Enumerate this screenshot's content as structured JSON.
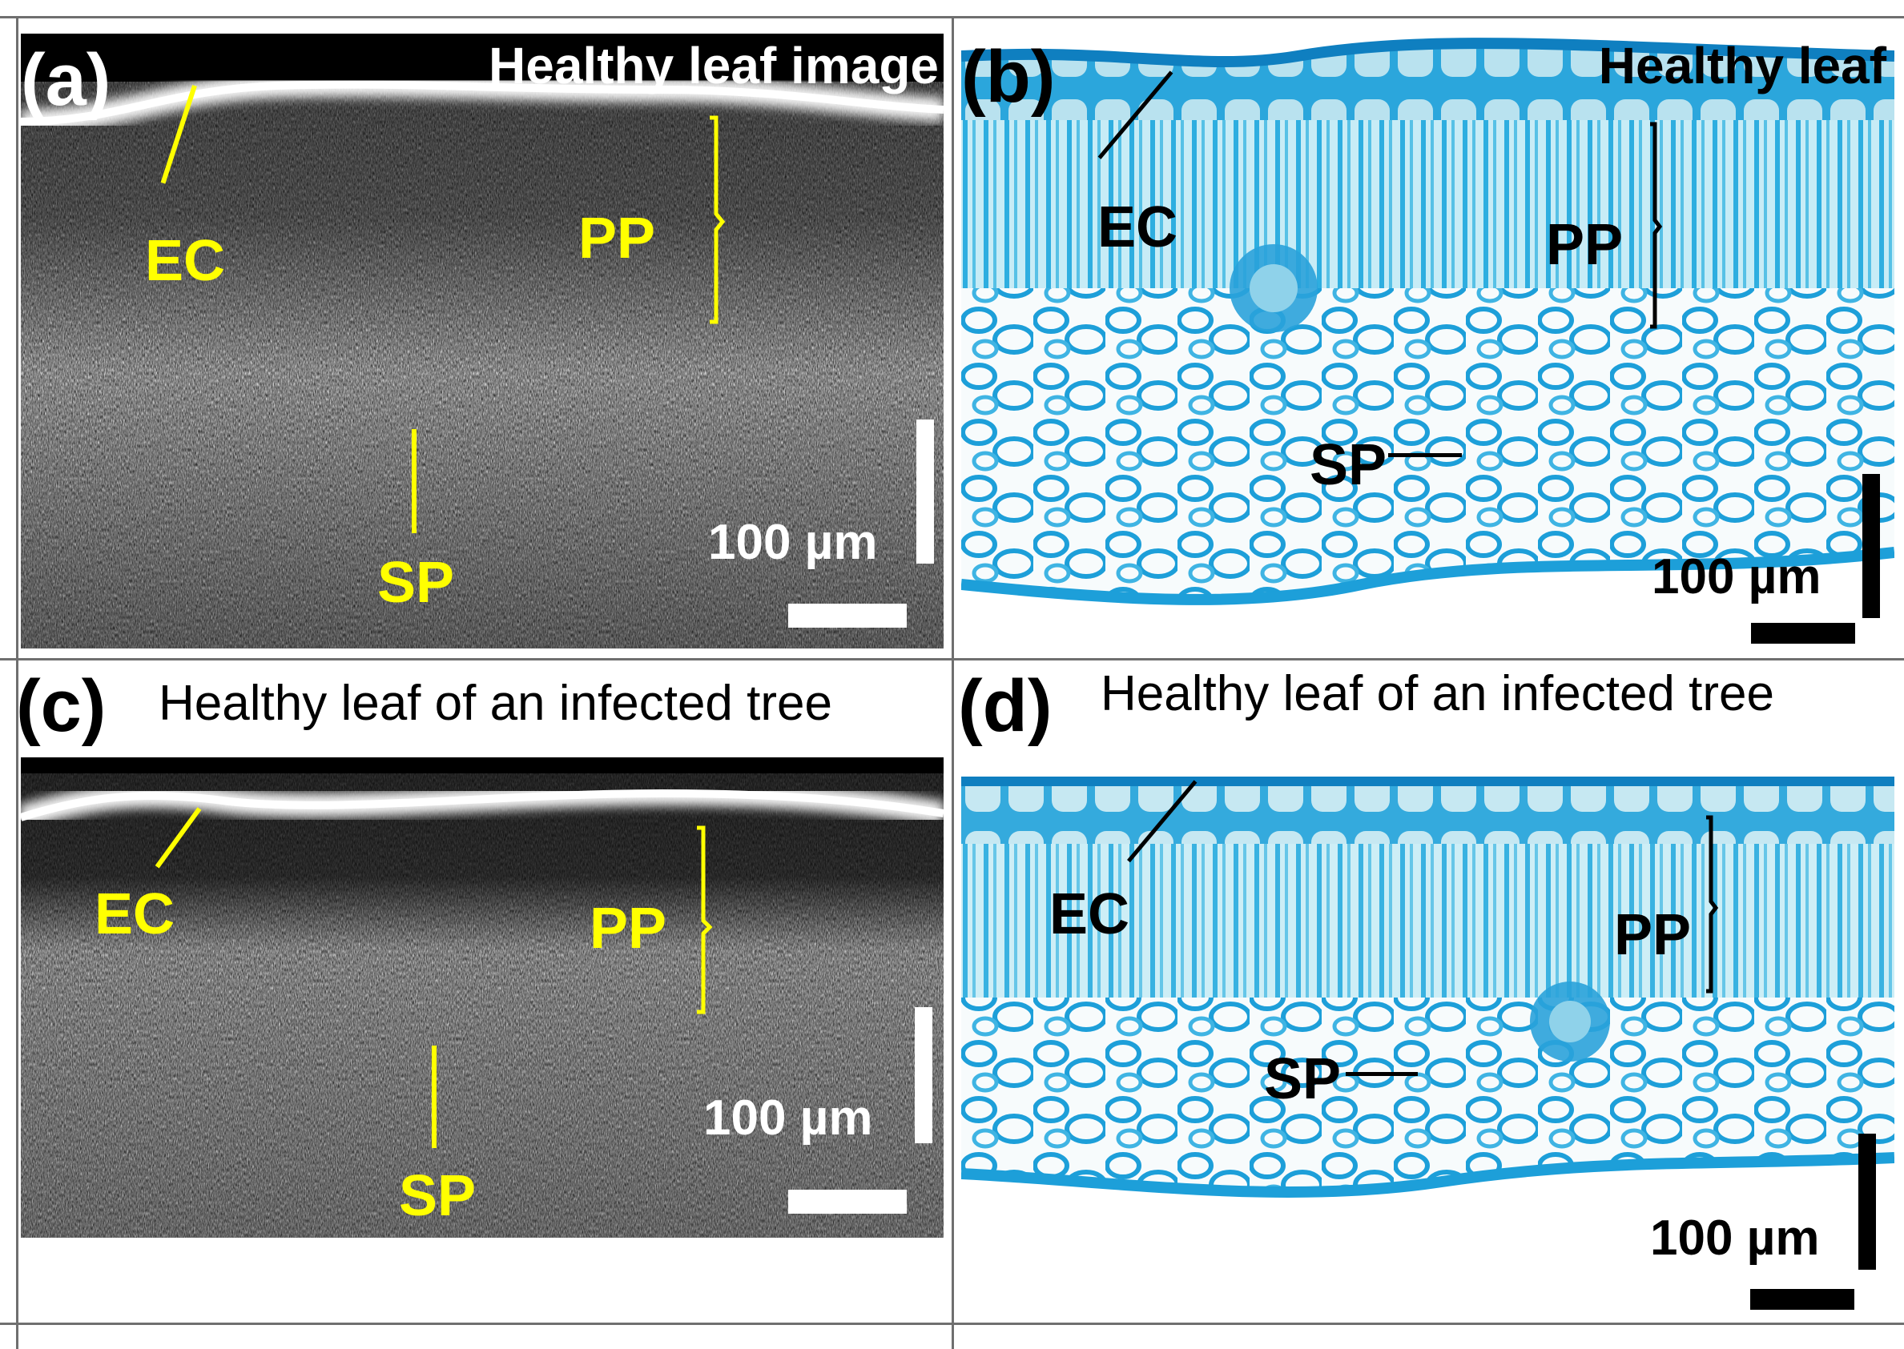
{
  "figure": {
    "panel_a": {
      "letter": "(a)",
      "title": "Healthy leaf image",
      "labels": {
        "ec": "EC",
        "pp": "PP",
        "sp": "SP"
      },
      "scale_text": "100 µm",
      "colors": {
        "background": "#000000",
        "label": "#ffff00",
        "scale": "#ffffff"
      }
    },
    "panel_b": {
      "letter": "(b)",
      "title": "Healthy leaf",
      "labels": {
        "ec": "EC",
        "pp": "PP",
        "sp": "SP"
      },
      "scale_text": "100 µm",
      "colors": {
        "stain": "#1a9ad6",
        "label": "#000000"
      }
    },
    "panel_c": {
      "letter": "(c)",
      "title": "Healthy leaf of an infected tree",
      "labels": {
        "ec": "EC",
        "pp": "PP",
        "sp": "SP"
      },
      "scale_text": "100 µm"
    },
    "panel_d": {
      "letter": "(d)",
      "title": "Healthy leaf of an infected tree",
      "labels": {
        "ec": "EC",
        "pp": "PP",
        "sp": "SP"
      },
      "scale_text": "100 µm"
    }
  }
}
